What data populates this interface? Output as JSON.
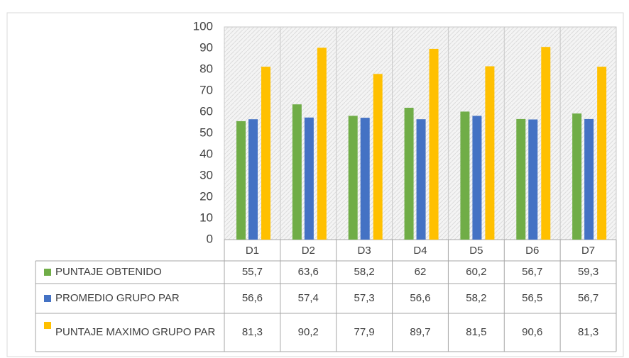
{
  "chart_data": {
    "type": "bar",
    "categories": [
      "D1",
      "D2",
      "D3",
      "D4",
      "D5",
      "D6",
      "D7"
    ],
    "series": [
      {
        "name": "PUNTAJE OBTENIDO",
        "color": "#70ad47",
        "values": [
          55.7,
          63.6,
          58.2,
          62,
          60.2,
          56.7,
          59.3
        ],
        "value_labels": [
          "55,7",
          "63,6",
          "58,2",
          "62",
          "60,2",
          "56,7",
          "59,3"
        ]
      },
      {
        "name": "PROMEDIO GRUPO PAR",
        "color": "#4472c4",
        "values": [
          56.6,
          57.4,
          57.3,
          56.6,
          58.2,
          56.5,
          56.7
        ],
        "value_labels": [
          "56,6",
          "57,4",
          "57,3",
          "56,6",
          "58,2",
          "56,5",
          "56,7"
        ]
      },
      {
        "name": "PUNTAJE MAXIMO GRUPO PAR",
        "color": "#ffc000",
        "values": [
          81.3,
          90.2,
          77.9,
          89.7,
          81.5,
          90.6,
          81.3
        ],
        "value_labels": [
          "81,3",
          "90,2",
          "77,9",
          "89,7",
          "81,5",
          "90,6",
          "81,3"
        ]
      }
    ],
    "ylim": [
      0,
      100
    ],
    "yticks": [
      0,
      10,
      20,
      30,
      40,
      50,
      60,
      70,
      80,
      90,
      100
    ]
  }
}
